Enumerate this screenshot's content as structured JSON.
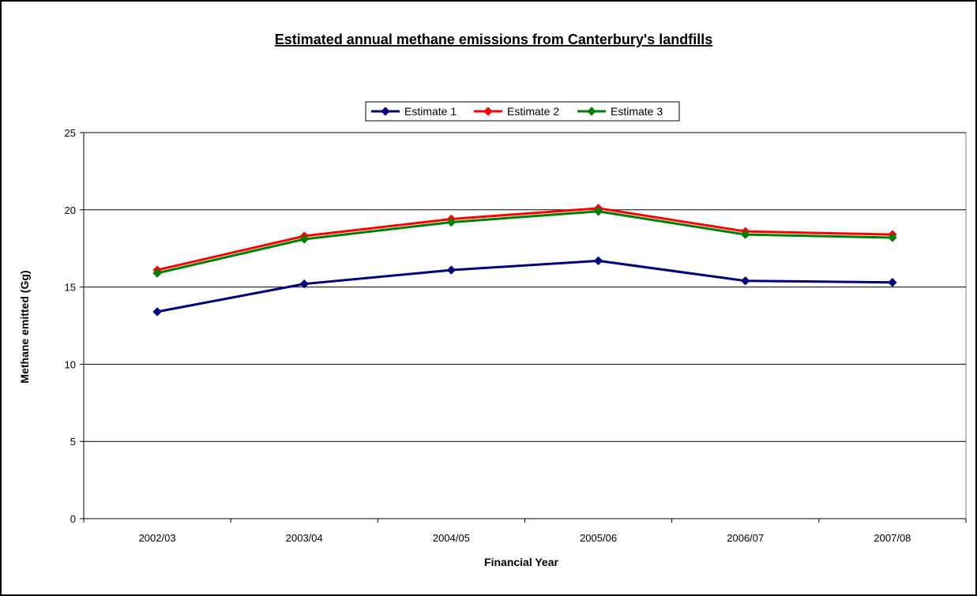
{
  "chart_data": {
    "type": "line",
    "title": "Estimated annual methane emissions from Canterbury's landfills",
    "xlabel": "Financial Year",
    "ylabel": "Methane emitted  (Gg)",
    "categories": [
      "2002/03",
      "2003/04",
      "2004/05",
      "2005/06",
      "2006/07",
      "2007/08"
    ],
    "ylim": [
      0,
      25
    ],
    "yticks": [
      0,
      5,
      10,
      15,
      20,
      25
    ],
    "grid": "horizontal",
    "legend_position": "top-center",
    "series": [
      {
        "name": "Estimate 1",
        "color": "#000080",
        "values": [
          13.4,
          15.2,
          16.1,
          16.7,
          15.4,
          15.3
        ]
      },
      {
        "name": "Estimate 2",
        "color": "#ff0000",
        "values": [
          16.1,
          18.3,
          19.4,
          20.1,
          18.6,
          18.4
        ]
      },
      {
        "name": "Estimate 3",
        "color": "#008000",
        "values": [
          15.9,
          18.1,
          19.2,
          19.9,
          18.4,
          18.2
        ]
      }
    ]
  }
}
